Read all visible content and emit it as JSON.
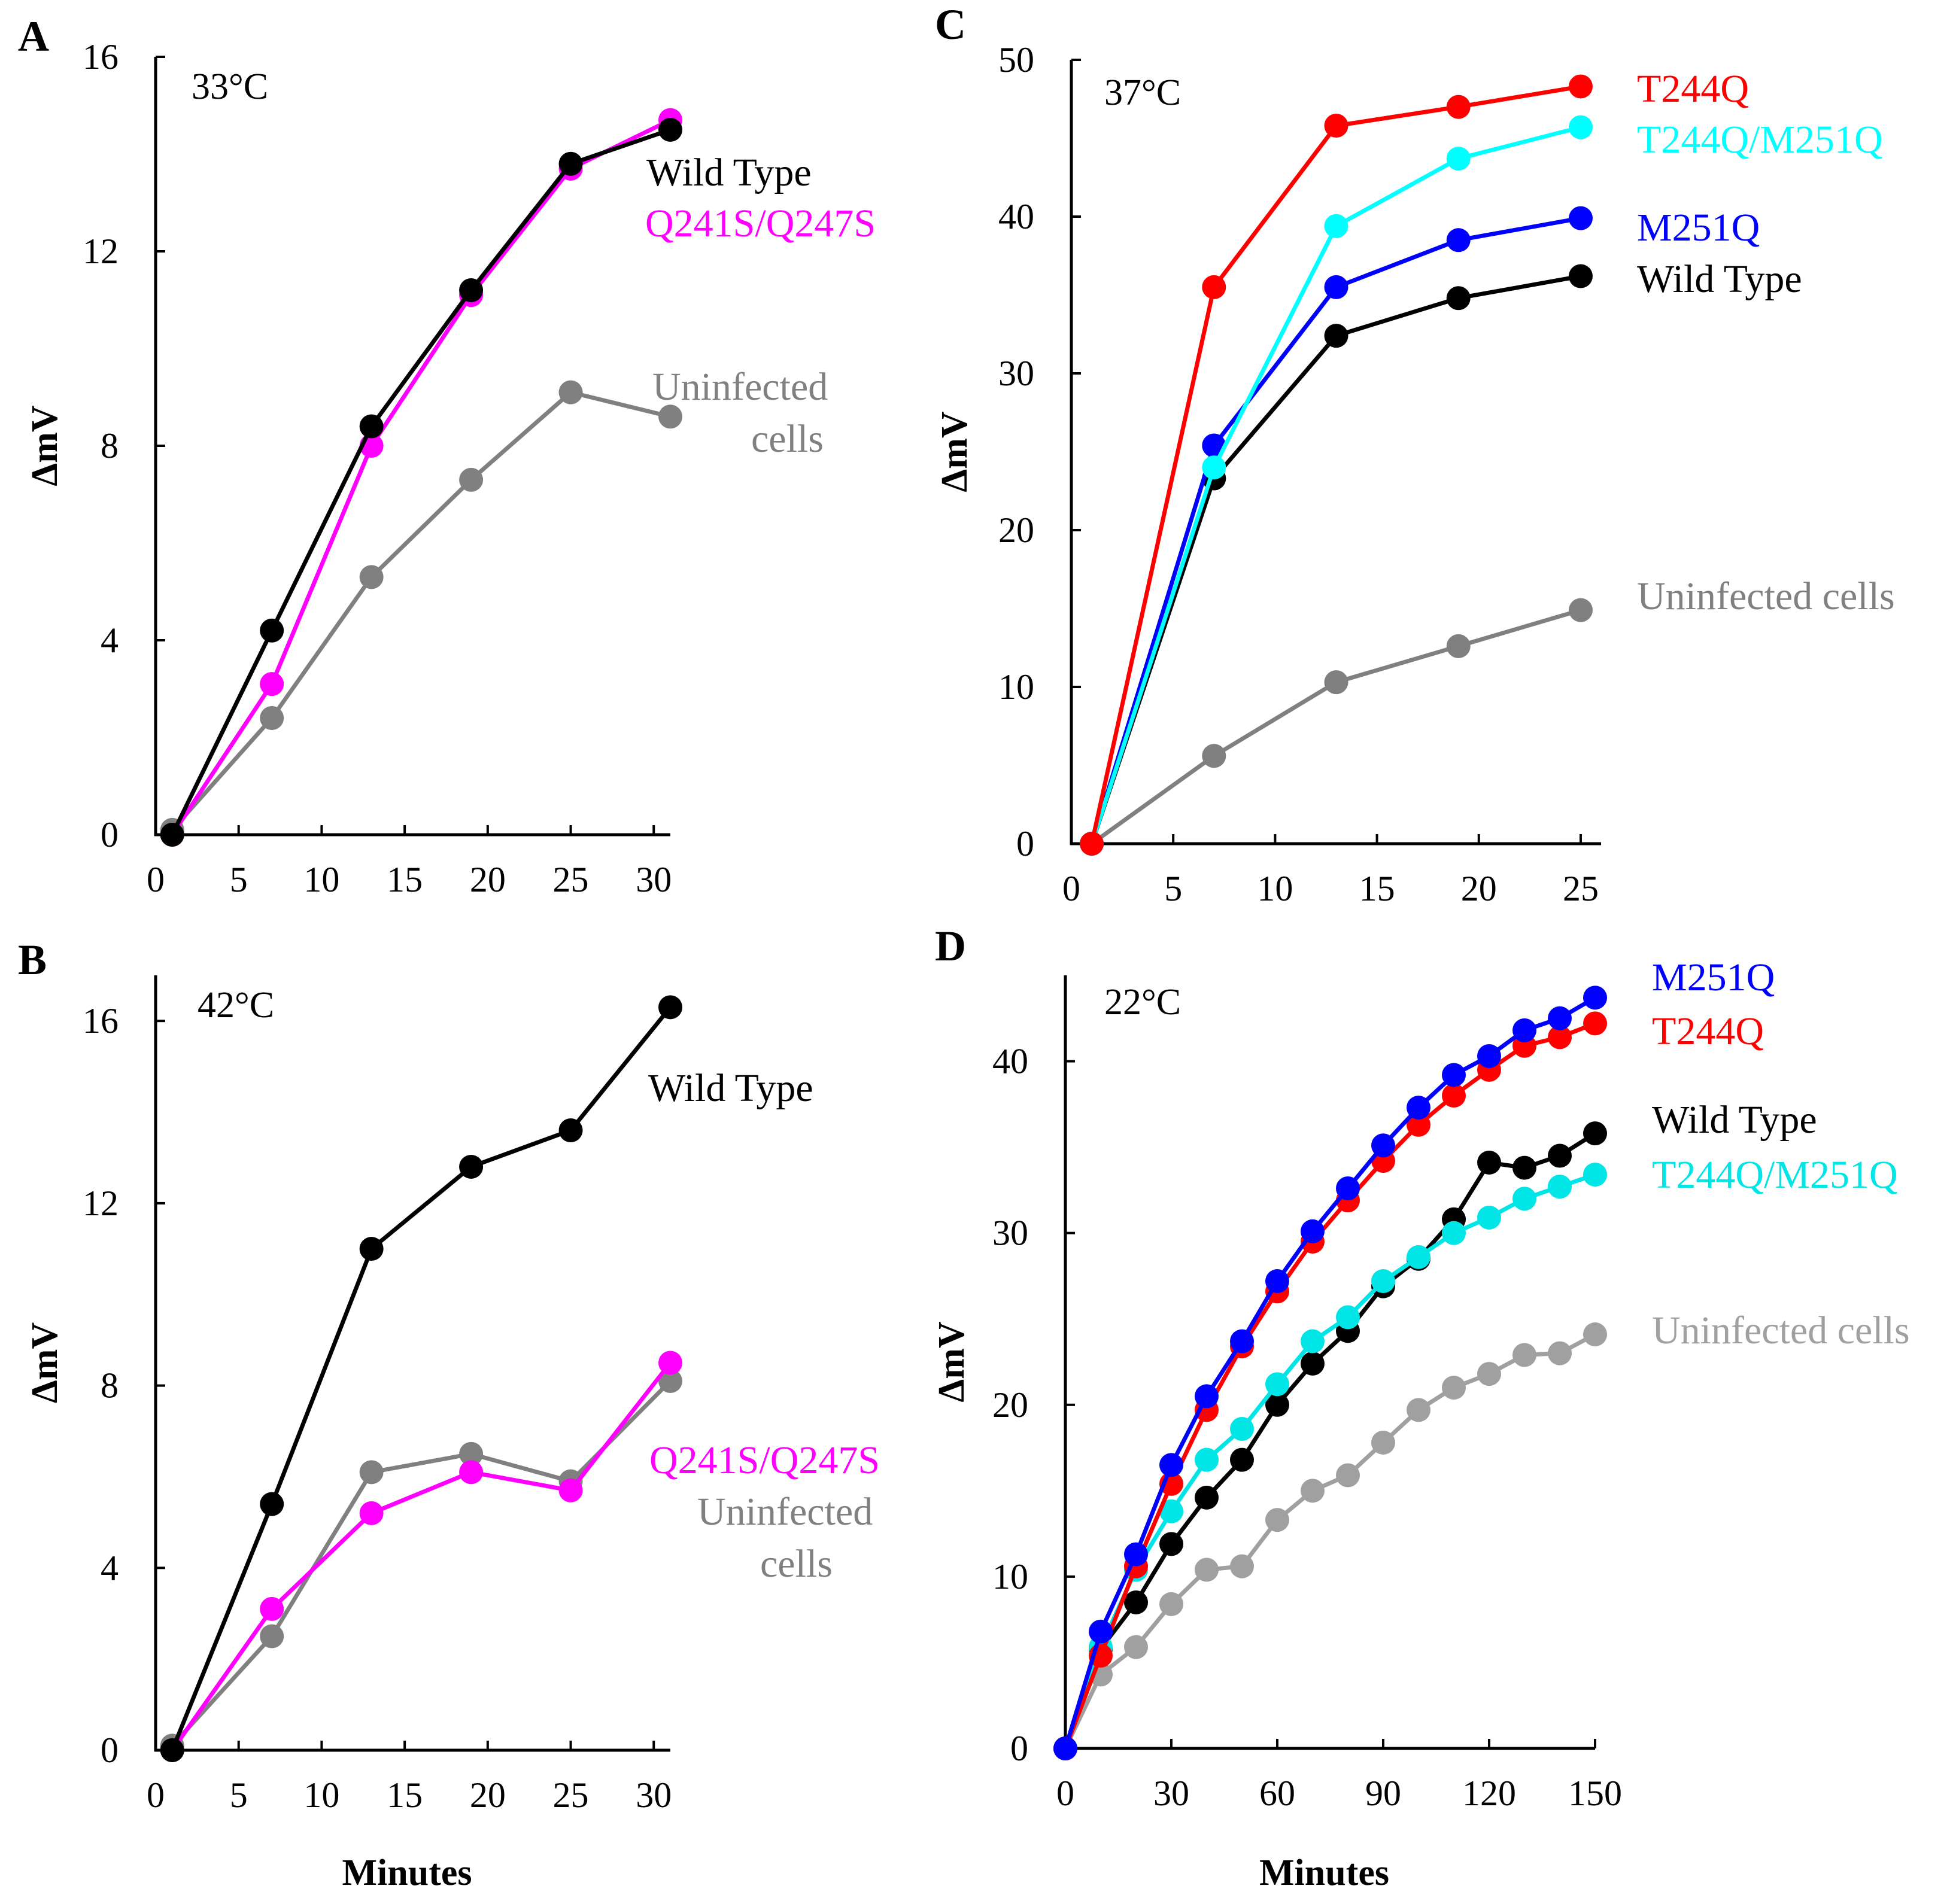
{
  "chart_data": [
    {
      "panel": "A",
      "type": "line",
      "temperature": "33°C",
      "xlabel": "",
      "ylabel": "ΔmV",
      "xlim": [
        0,
        31
      ],
      "ylim": [
        0,
        16
      ],
      "xticks": [
        0,
        5,
        10,
        15,
        20,
        25,
        30
      ],
      "yticks": [
        0,
        4,
        8,
        12,
        16
      ],
      "series": [
        {
          "name": "Uninfected cells",
          "label": "Uninfected cells",
          "color": "#808080",
          "x": [
            1,
            7,
            13,
            19,
            25,
            31
          ],
          "values": [
            0.1,
            2.4,
            5.3,
            7.3,
            9.1,
            8.6
          ]
        },
        {
          "name": "Q241S/Q247S",
          "label": "Q241S/Q247S",
          "color": "#ff00ff",
          "x": [
            1,
            7,
            13,
            19,
            25,
            31
          ],
          "values": [
            0,
            3.1,
            8.0,
            11.1,
            13.7,
            14.7
          ]
        },
        {
          "name": "Wild Type",
          "label": "Wild Type",
          "color": "#000000",
          "x": [
            1,
            7,
            13,
            19,
            25,
            31
          ],
          "values": [
            0,
            4.2,
            8.4,
            11.2,
            13.8,
            14.5
          ]
        }
      ]
    },
    {
      "panel": "B",
      "type": "line",
      "temperature": "42°C",
      "xlabel": "Minutes",
      "ylabel": "ΔmV",
      "xlim": [
        0,
        31
      ],
      "ylim": [
        0,
        17
      ],
      "xticks": [
        0,
        5,
        10,
        15,
        20,
        25,
        30
      ],
      "yticks": [
        0,
        4,
        8,
        12,
        16
      ],
      "series": [
        {
          "name": "Uninfected cells",
          "label": "Uninfected cells",
          "color": "#808080",
          "x": [
            1,
            7,
            13,
            19,
            25,
            31
          ],
          "values": [
            0.1,
            2.5,
            6.1,
            6.5,
            5.9,
            8.1
          ]
        },
        {
          "name": "Q241S/Q247S",
          "label": "Q241S/Q247S",
          "color": "#ff00ff",
          "x": [
            1,
            7,
            13,
            19,
            25,
            31
          ],
          "values": [
            0,
            3.1,
            5.2,
            6.1,
            5.7,
            8.5
          ]
        },
        {
          "name": "Wild Type",
          "label": "Wild Type",
          "color": "#000000",
          "x": [
            1,
            7,
            13,
            19,
            25,
            31
          ],
          "values": [
            0,
            5.4,
            11.0,
            12.8,
            13.6,
            16.3
          ]
        }
      ]
    },
    {
      "panel": "C",
      "type": "line",
      "temperature": "37°C",
      "xlabel": "",
      "ylabel": "ΔmV",
      "xlim": [
        0,
        26
      ],
      "ylim": [
        0,
        50
      ],
      "xticks": [
        0,
        5,
        10,
        15,
        20,
        25
      ],
      "yticks": [
        0,
        10,
        20,
        30,
        40,
        50
      ],
      "series": [
        {
          "name": "Uninfected cells",
          "label": "Uninfected cells",
          "color": "#808080",
          "x": [
            1,
            7,
            13,
            19,
            25
          ],
          "values": [
            0,
            5.6,
            10.3,
            12.6,
            14.9
          ]
        },
        {
          "name": "Wild Type",
          "label": "Wild Type",
          "color": "#000000",
          "x": [
            1,
            7,
            13,
            19,
            25
          ],
          "values": [
            0,
            23.3,
            32.4,
            34.8,
            36.2
          ]
        },
        {
          "name": "M251Q",
          "label": "M251Q",
          "color": "#0000ff",
          "x": [
            1,
            7,
            13,
            19,
            25
          ],
          "values": [
            0,
            25.4,
            35.5,
            38.5,
            39.9
          ]
        },
        {
          "name": "T244Q/M251Q",
          "label": "T244Q/M251Q",
          "color": "#00ffff",
          "x": [
            1,
            7,
            13,
            19,
            25
          ],
          "values": [
            0,
            24.0,
            39.4,
            43.7,
            45.7
          ]
        },
        {
          "name": "T244Q",
          "label": "T244Q",
          "color": "#ff0000",
          "x": [
            1,
            7,
            13,
            19,
            25
          ],
          "values": [
            0,
            35.5,
            45.8,
            47.0,
            48.3
          ]
        }
      ]
    },
    {
      "panel": "D",
      "type": "line",
      "temperature": "22°C",
      "xlabel": "Minutes",
      "ylabel": "ΔmV",
      "xlim": [
        0,
        150
      ],
      "ylim": [
        0,
        45
      ],
      "xticks": [
        0,
        30,
        60,
        90,
        120,
        150
      ],
      "yticks": [
        0,
        10,
        20,
        30,
        40
      ],
      "series": [
        {
          "name": "Uninfected cells",
          "label": "Uninfected cells",
          "color": "#a0a0a0",
          "x": [
            0,
            10,
            20,
            30,
            40,
            50,
            60,
            70,
            80,
            90,
            100,
            110,
            120,
            130,
            140,
            150
          ],
          "values": [
            0,
            4.3,
            5.9,
            8.4,
            10.4,
            10.6,
            13.3,
            15.0,
            15.9,
            17.8,
            19.7,
            21.0,
            21.8,
            22.9,
            23.0,
            24.1
          ]
        },
        {
          "name": "Wild Type",
          "label": "Wild Type",
          "color": "#000000",
          "x": [
            0,
            10,
            20,
            30,
            40,
            50,
            60,
            70,
            80,
            90,
            100,
            110,
            120,
            130,
            140,
            150
          ],
          "values": [
            0,
            5.8,
            8.5,
            11.9,
            14.6,
            16.8,
            20.0,
            22.4,
            24.3,
            26.9,
            28.5,
            30.8,
            34.1,
            33.8,
            34.5,
            35.8
          ]
        },
        {
          "name": "T244Q/M251Q",
          "label": "T244Q/M251Q",
          "color": "#00e5e5",
          "x": [
            0,
            10,
            20,
            30,
            40,
            50,
            60,
            70,
            80,
            90,
            100,
            110,
            120,
            130,
            140,
            150
          ],
          "values": [
            0,
            5.9,
            10.4,
            13.8,
            16.8,
            18.6,
            21.2,
            23.7,
            25.1,
            27.2,
            28.6,
            30.0,
            30.9,
            32.0,
            32.7,
            33.4
          ]
        },
        {
          "name": "T244Q",
          "label": "T244Q",
          "color": "#ff0000",
          "x": [
            0,
            10,
            20,
            30,
            40,
            50,
            60,
            70,
            80,
            90,
            100,
            110,
            120,
            130,
            140,
            150
          ],
          "values": [
            0,
            5.4,
            10.6,
            15.4,
            19.7,
            23.4,
            26.6,
            29.5,
            31.9,
            34.2,
            36.3,
            38.0,
            39.5,
            40.9,
            41.4,
            42.2
          ]
        },
        {
          "name": "M251Q",
          "label": "M251Q",
          "color": "#0000ff",
          "x": [
            0,
            10,
            20,
            30,
            40,
            50,
            60,
            70,
            80,
            90,
            100,
            110,
            120,
            130,
            140,
            150
          ],
          "values": [
            0,
            6.8,
            11.3,
            16.5,
            20.5,
            23.7,
            27.2,
            30.1,
            32.6,
            35.1,
            37.3,
            39.2,
            40.3,
            41.8,
            42.5,
            43.7
          ]
        }
      ]
    }
  ]
}
